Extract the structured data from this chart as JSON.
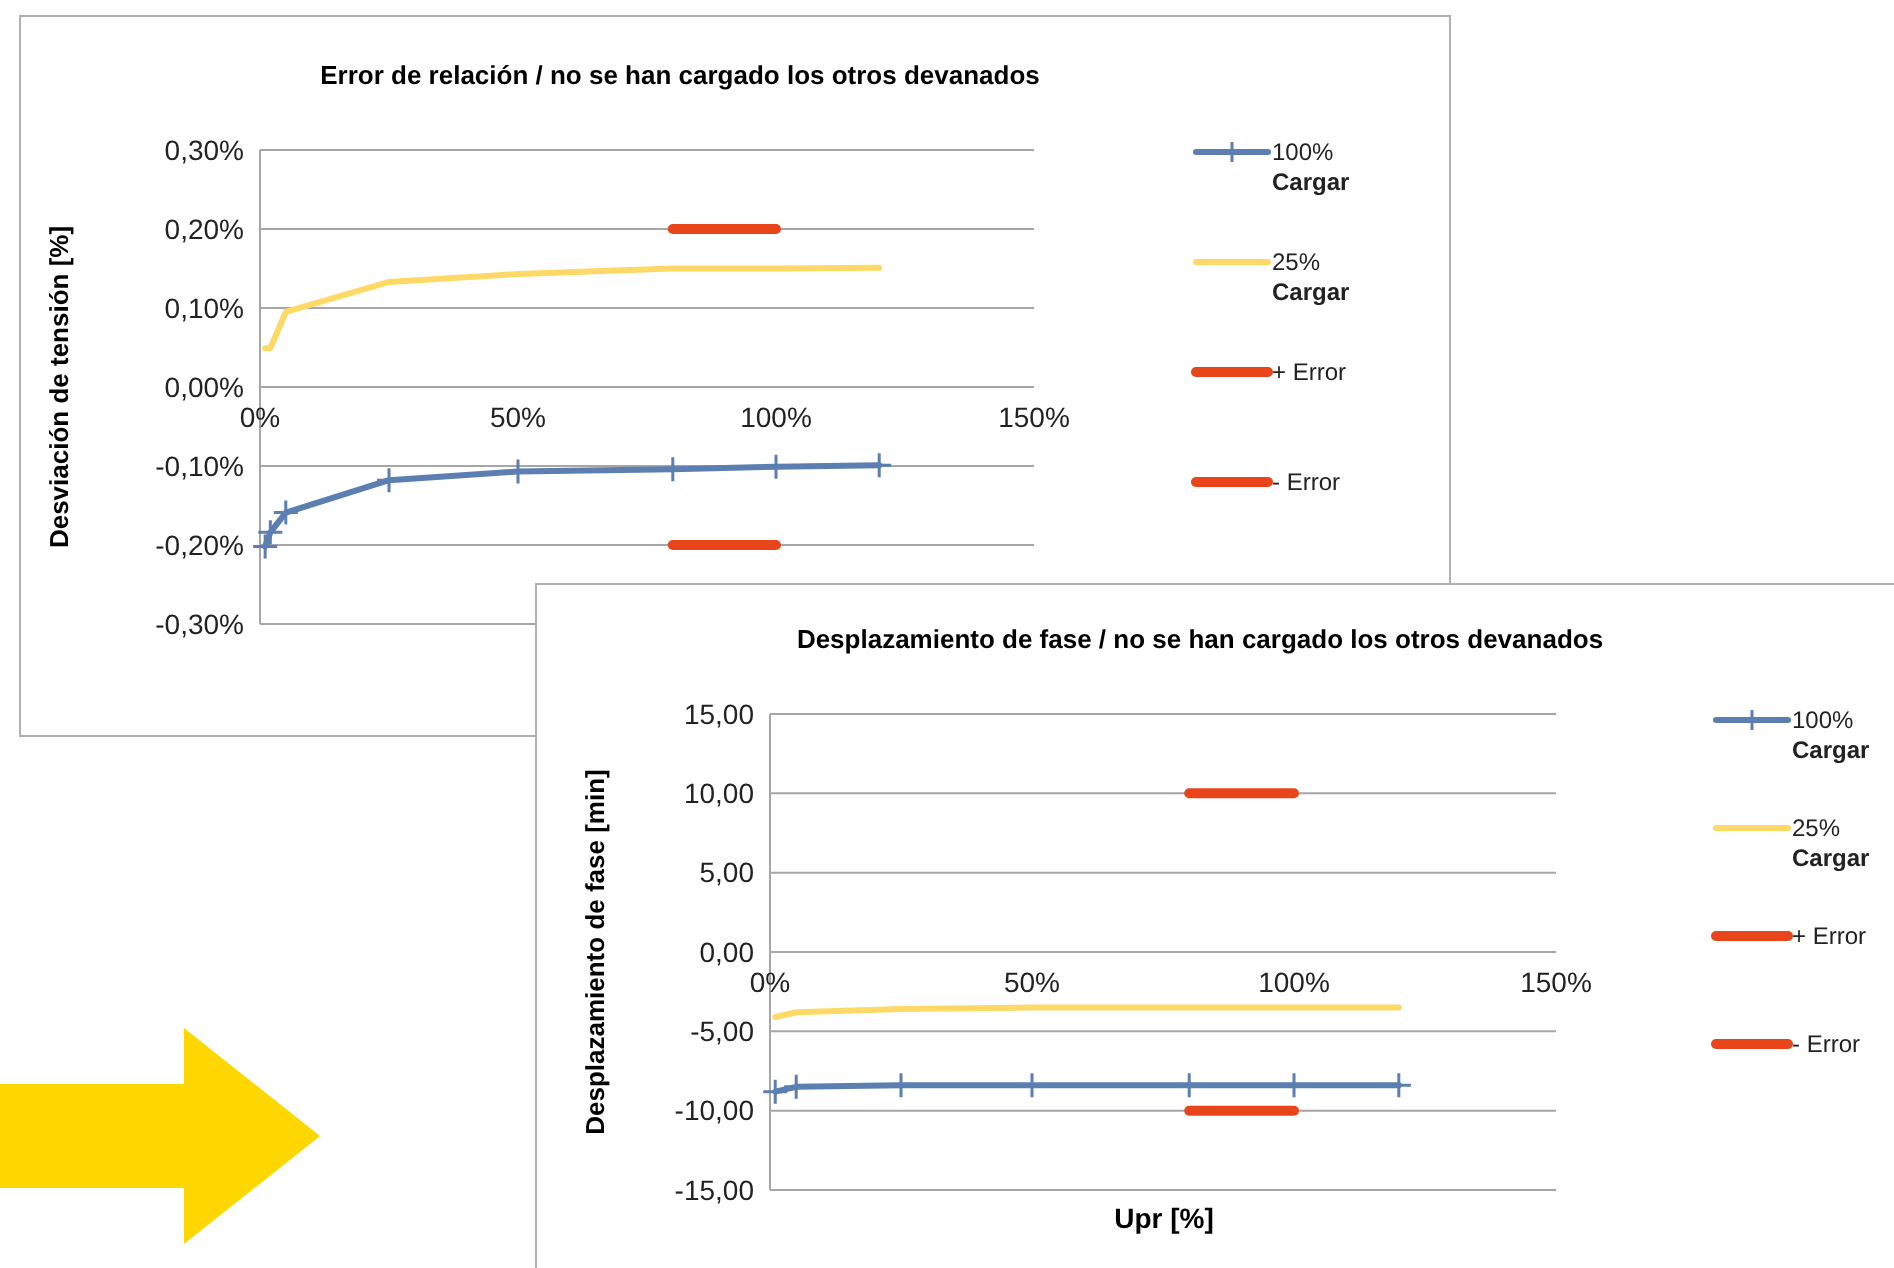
{
  "chart_data": [
    {
      "type": "line",
      "title": "Error de relación / no se han cargado los otros devanados",
      "ylabel": "Desviación de tensión [%]",
      "xlim": [
        0,
        150
      ],
      "xticks": [
        {
          "value": 0,
          "label": "0%"
        },
        {
          "value": 50,
          "label": "50%"
        },
        {
          "value": 100,
          "label": "100%"
        },
        {
          "value": 150,
          "label": "150%"
        }
      ],
      "ylim": [
        -0.3,
        0.3
      ],
      "yticks": [
        {
          "value": -0.3,
          "label": "-0,30%"
        },
        {
          "value": -0.2,
          "label": "-0,20%"
        },
        {
          "value": -0.1,
          "label": "-0,10%"
        },
        {
          "value": 0,
          "label": "0,00%"
        },
        {
          "value": 0.1,
          "label": "0,10%"
        },
        {
          "value": 0.2,
          "label": "0,20%"
        },
        {
          "value": 0.3,
          "label": "0,30%"
        }
      ],
      "grid": "y",
      "legend": "right",
      "series": [
        {
          "name": "100% Cargar",
          "color": "#5b7fb0",
          "marker": "cross",
          "x": [
            1,
            2,
            5,
            25,
            50,
            80,
            100,
            120
          ],
          "values": [
            -0.202,
            -0.184,
            -0.159,
            -0.118,
            -0.107,
            -0.104,
            -0.101,
            -0.099
          ]
        },
        {
          "name": "25% Cargar",
          "color": "#ffd966",
          "x": [
            1,
            2,
            5,
            25,
            50,
            80,
            100,
            120
          ],
          "values": [
            0.049,
            0.049,
            0.095,
            0.133,
            0.143,
            0.15,
            0.15,
            0.151
          ]
        },
        {
          "name": "+ Error",
          "color": "#e8461a",
          "x": [
            80,
            100
          ],
          "values": [
            0.2,
            0.2
          ]
        },
        {
          "name": "- Error",
          "color": "#e8461a",
          "x": [
            80,
            100
          ],
          "values": [
            -0.2,
            -0.2
          ]
        }
      ]
    },
    {
      "type": "line",
      "title": "Desplazamiento de fase / no se han cargado los otros devanados",
      "xlabel": "Upr [%]",
      "ylabel": "Desplazamiento de fase [min]",
      "xlim": [
        0,
        150
      ],
      "xticks": [
        {
          "value": 0,
          "label": "0%"
        },
        {
          "value": 50,
          "label": "50%"
        },
        {
          "value": 100,
          "label": "100%"
        },
        {
          "value": 150,
          "label": "150%"
        }
      ],
      "ylim": [
        -15,
        15
      ],
      "yticks": [
        {
          "value": -15,
          "label": "-15,00"
        },
        {
          "value": -10,
          "label": "-10,00"
        },
        {
          "value": -5,
          "label": "-5,00"
        },
        {
          "value": 0,
          "label": "0,00"
        },
        {
          "value": 5,
          "label": "5,00"
        },
        {
          "value": 10,
          "label": "10,00"
        },
        {
          "value": 15,
          "label": "15,00"
        }
      ],
      "grid": "y",
      "legend": "right",
      "series": [
        {
          "name": "100% Cargar",
          "color": "#5b7fb0",
          "marker": "cross",
          "x": [
            1,
            5,
            25,
            50,
            80,
            100,
            120
          ],
          "values": [
            -8.8,
            -8.5,
            -8.4,
            -8.4,
            -8.4,
            -8.4,
            -8.4
          ]
        },
        {
          "name": "25% Cargar",
          "color": "#ffd966",
          "x": [
            1,
            5,
            25,
            50,
            80,
            100,
            120
          ],
          "values": [
            -4.1,
            -3.8,
            -3.6,
            -3.5,
            -3.5,
            -3.5,
            -3.5
          ]
        },
        {
          "name": "+ Error",
          "color": "#e8461a",
          "x": [
            80,
            100
          ],
          "values": [
            10,
            10
          ]
        },
        {
          "name": "- Error",
          "color": "#e8461a",
          "x": [
            80,
            100
          ],
          "values": [
            -10,
            -10
          ]
        }
      ]
    }
  ]
}
